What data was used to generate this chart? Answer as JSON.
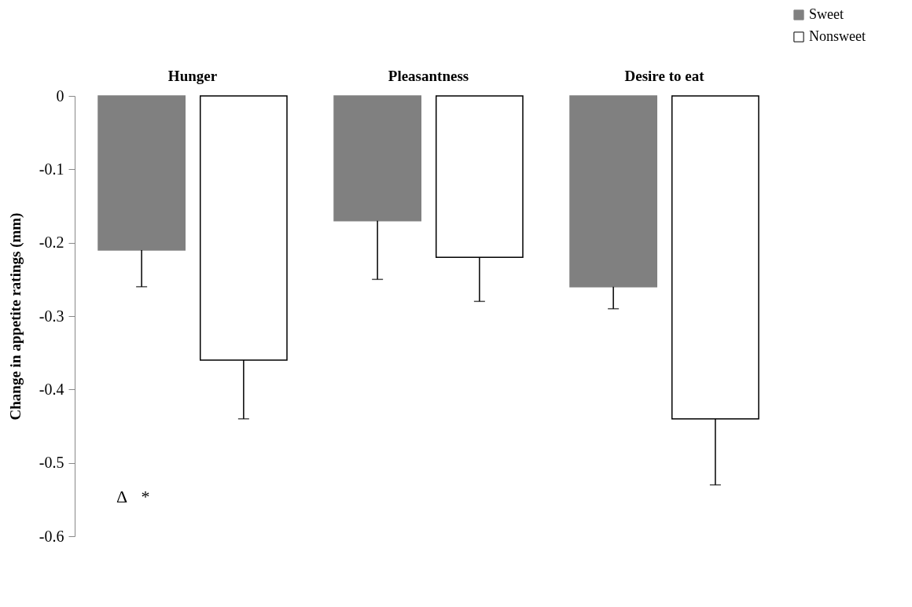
{
  "chart_data": {
    "type": "bar",
    "ylabel": "Change in appetite ratings (mm)",
    "categories": [
      "Hunger",
      "Pleasantness",
      "Desire to eat"
    ],
    "series": [
      {
        "name": "Sweet",
        "color": "#808080",
        "values": [
          -0.21,
          -0.17,
          -0.26
        ],
        "errors": [
          [
            -0.26,
            -0.21
          ],
          [
            -0.25,
            -0.17
          ],
          [
            -0.29,
            -0.26
          ]
        ]
      },
      {
        "name": "Nonsweet",
        "color": "#ffffff",
        "values": [
          -0.36,
          -0.22,
          -0.44
        ],
        "errors": [
          [
            -0.44,
            -0.36
          ],
          [
            -0.28,
            -0.22
          ],
          [
            -0.53,
            -0.44
          ]
        ]
      }
    ],
    "ylim": [
      -0.6,
      0
    ],
    "yticks": [
      0,
      -0.1,
      -0.2,
      -0.3,
      -0.4,
      -0.5,
      -0.6
    ],
    "annotations": [
      "Δ",
      "*"
    ],
    "legend": "top right",
    "grid": false
  }
}
